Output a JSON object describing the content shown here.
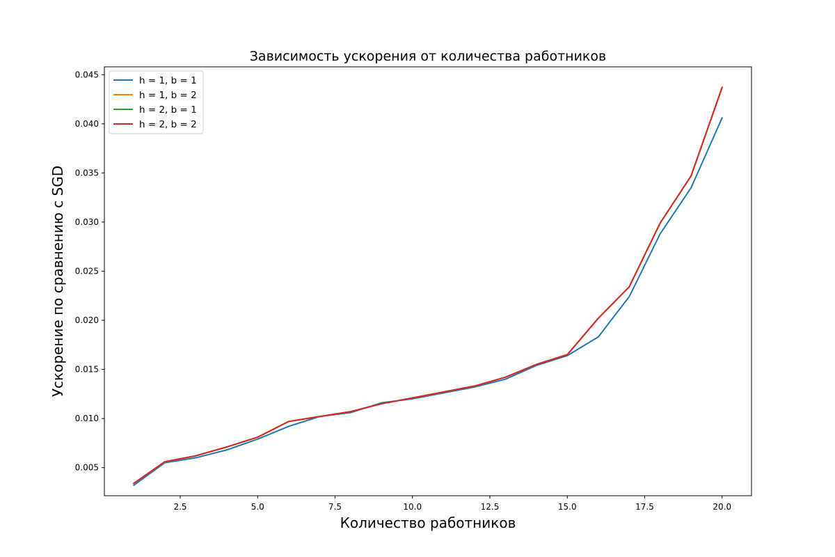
{
  "chart_data": {
    "type": "line",
    "title": "Зависимость ускорения от количества работников",
    "xlabel": "Количество работников",
    "ylabel": "Ускорение по сравнению с SGD",
    "xlim": [
      0.05,
      20.95
    ],
    "ylim": [
      0.00214,
      0.0458
    ],
    "xticks": [
      2.5,
      5.0,
      7.5,
      10.0,
      12.5,
      15.0,
      17.5,
      20.0
    ],
    "yticks": [
      0.005,
      0.01,
      0.015,
      0.02,
      0.025,
      0.03,
      0.035,
      0.04,
      0.045
    ],
    "grid": false,
    "legend_position": "upper-left",
    "x": [
      1,
      2,
      3,
      4,
      5,
      6,
      7,
      8,
      9,
      10,
      11,
      12,
      13,
      14,
      15,
      16,
      17,
      18,
      19,
      20
    ],
    "series": [
      {
        "name": "h = 1, b = 1",
        "color": "#1f77b4",
        "values": [
          0.0032,
          0.0055,
          0.006,
          0.0068,
          0.0079,
          0.0092,
          0.0102,
          0.0106,
          0.0116,
          0.012,
          0.0126,
          0.0132,
          0.014,
          0.0154,
          0.0164,
          0.0183,
          0.0224,
          0.0288,
          0.0335,
          0.0406
        ]
      },
      {
        "name": "h = 1, b = 2",
        "color": "#ff7f0e",
        "values": [
          0.0034,
          0.0056,
          0.0062,
          0.0071,
          0.0081,
          0.0097,
          0.0102,
          0.0107,
          0.0115,
          0.0121,
          0.0127,
          0.0133,
          0.0142,
          0.0155,
          0.0165,
          0.0202,
          0.0234,
          0.0299,
          0.0347,
          0.0437
        ]
      },
      {
        "name": "h = 2, b = 1",
        "color": "#2ca02c",
        "values": [
          0.0034,
          0.0056,
          0.0062,
          0.0071,
          0.0081,
          0.0097,
          0.0102,
          0.0107,
          0.0115,
          0.0121,
          0.0127,
          0.0133,
          0.0142,
          0.0155,
          0.0165,
          0.0202,
          0.0234,
          0.0299,
          0.0347,
          0.0437
        ]
      },
      {
        "name": "h = 2, b = 2",
        "color": "#d62728",
        "values": [
          0.0034,
          0.0056,
          0.0062,
          0.0071,
          0.0081,
          0.0097,
          0.0102,
          0.0107,
          0.0115,
          0.0121,
          0.0127,
          0.0133,
          0.0142,
          0.0155,
          0.0165,
          0.0202,
          0.0234,
          0.0299,
          0.0347,
          0.0437
        ]
      }
    ]
  }
}
